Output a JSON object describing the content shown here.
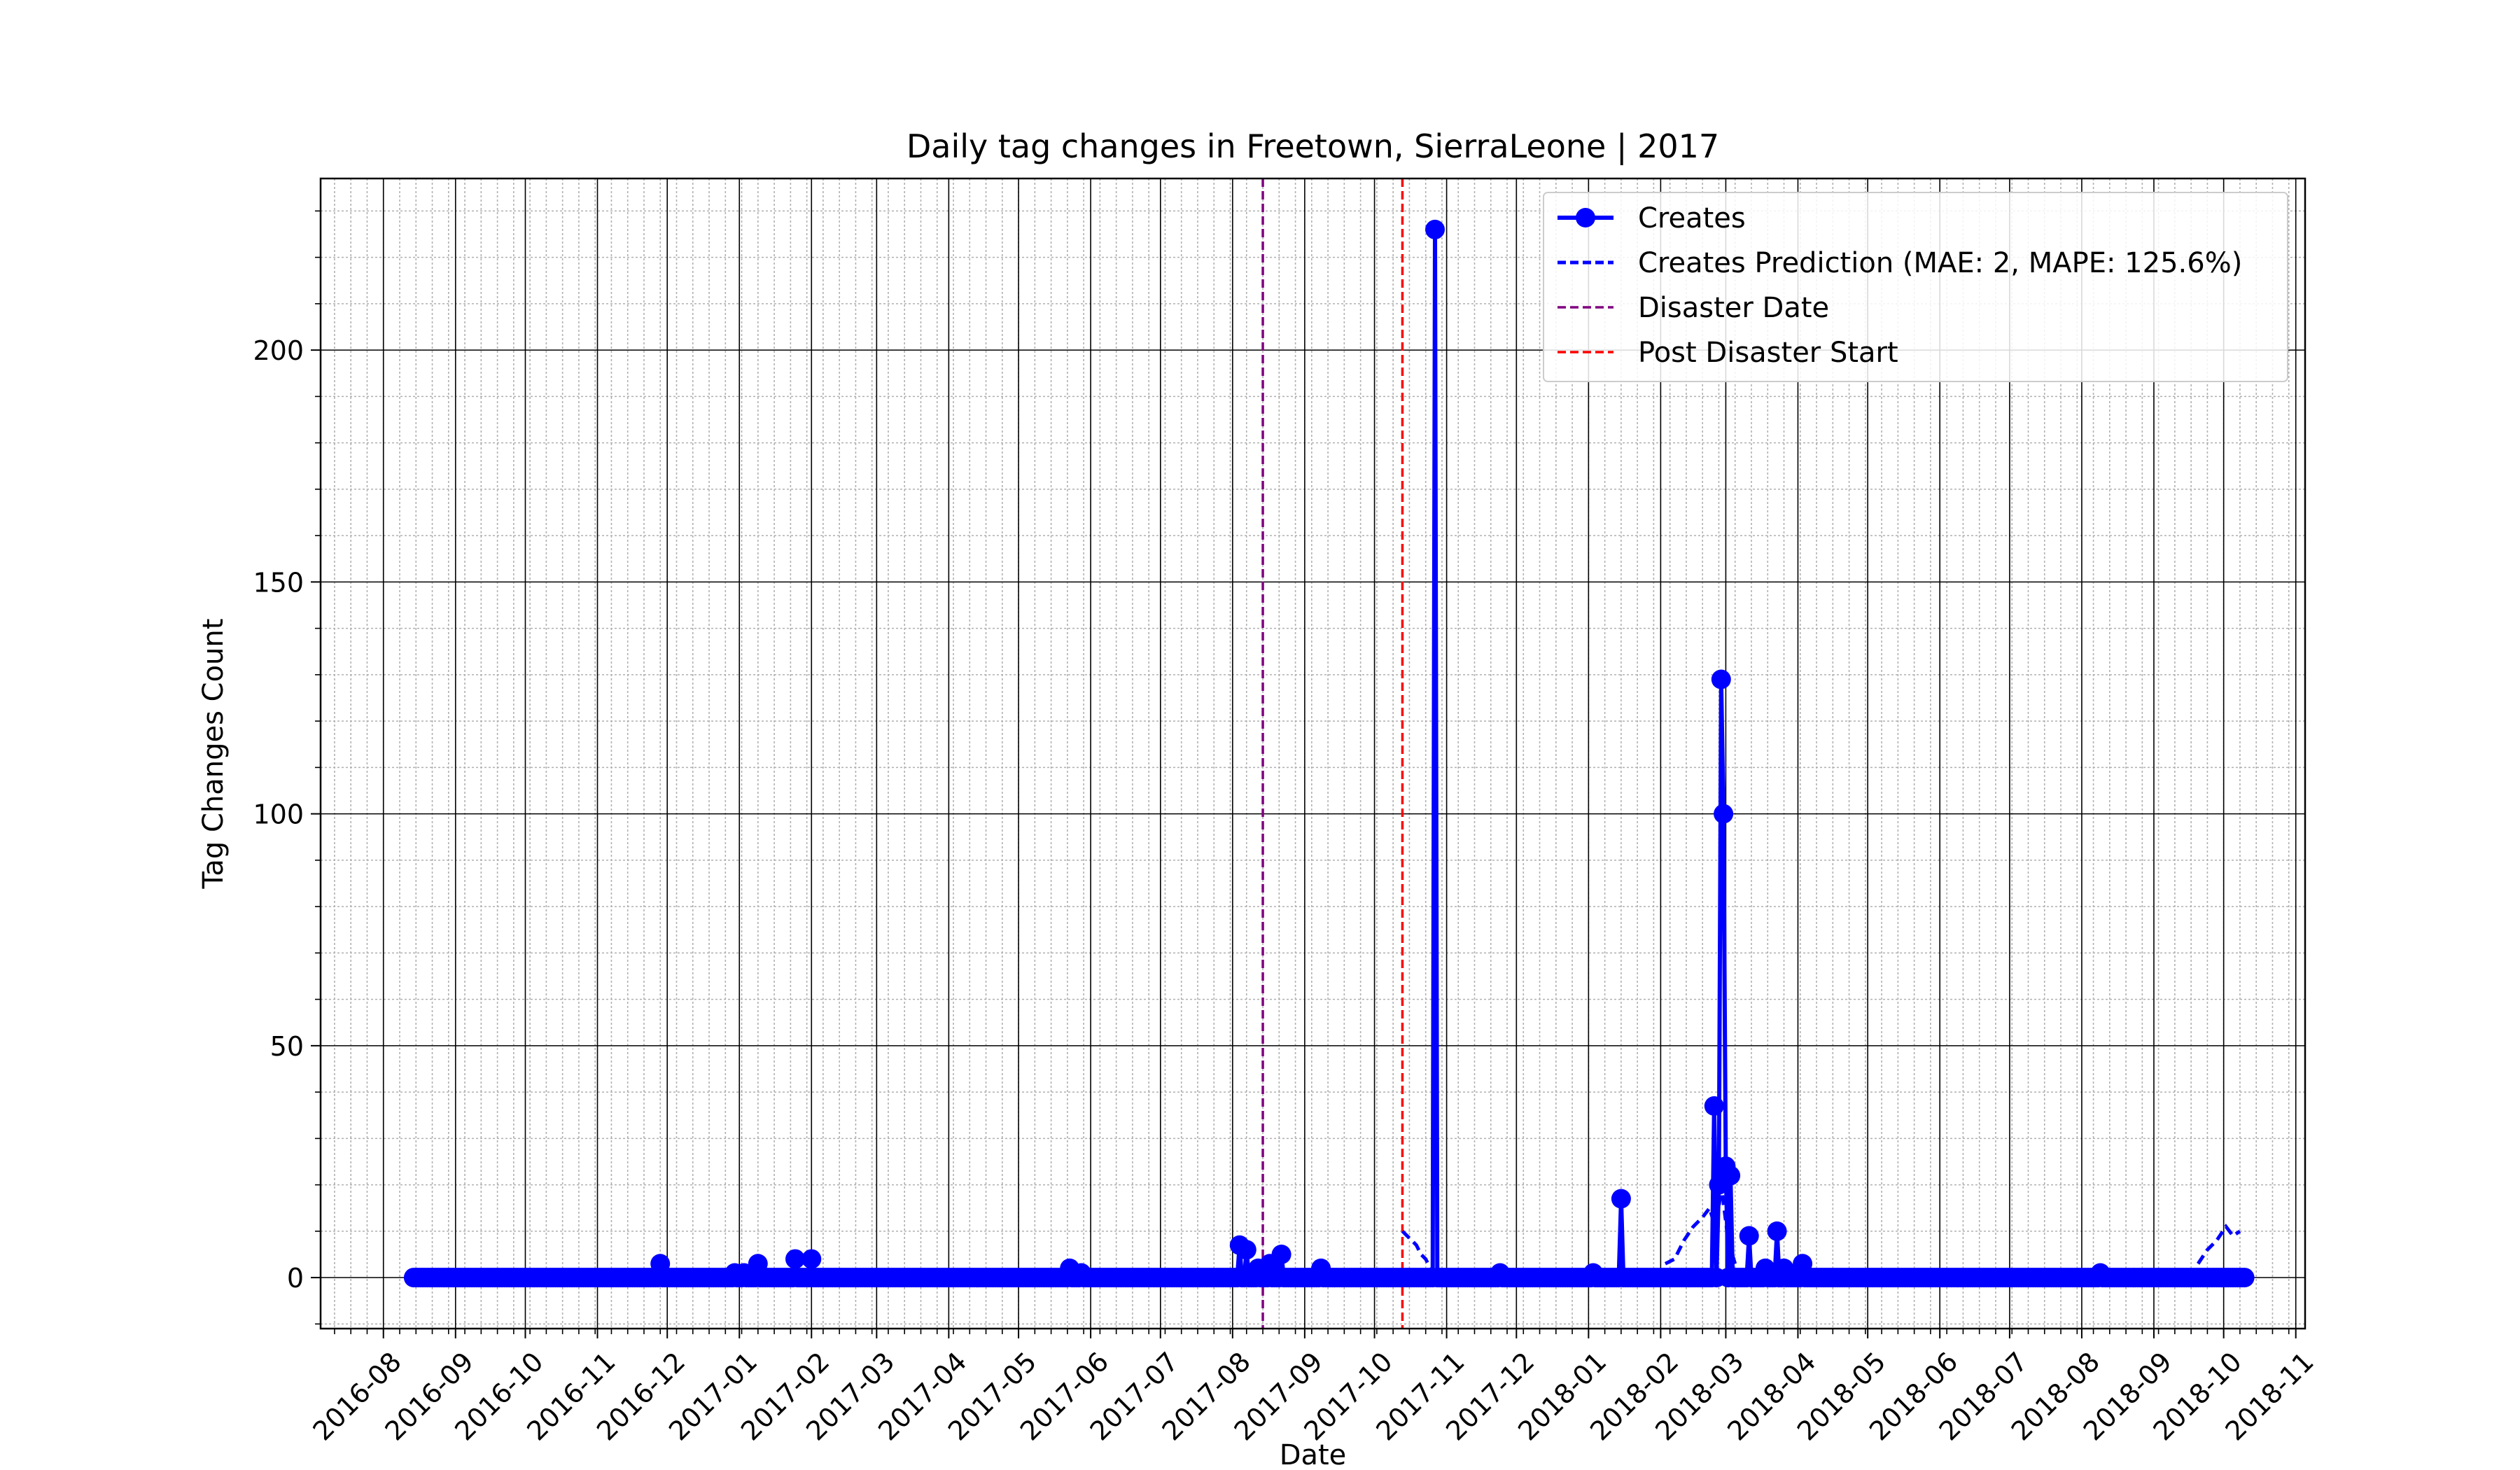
{
  "chart_data": {
    "type": "line",
    "title": "Daily tag changes in Freetown, SierraLeone | 2017",
    "xlabel": "Date",
    "ylabel": "Tag Changes Count",
    "xlim": [
      "2016-07-05",
      "2018-11-05"
    ],
    "ylim": [
      -11,
      237
    ],
    "x_ticks": [
      "2016-08",
      "2016-09",
      "2016-10",
      "2016-11",
      "2016-12",
      "2017-01",
      "2017-02",
      "2017-03",
      "2017-04",
      "2017-05",
      "2017-06",
      "2017-07",
      "2017-08",
      "2017-09",
      "2017-10",
      "2017-11",
      "2017-12",
      "2018-01",
      "2018-02",
      "2018-03",
      "2018-04",
      "2018-05",
      "2018-06",
      "2018-07",
      "2018-08",
      "2018-09",
      "2018-10",
      "2018-11"
    ],
    "y_ticks": [
      0,
      50,
      100,
      150,
      200
    ],
    "grid": true,
    "legend_position": "upper right",
    "legend": [
      {
        "label": "Creates",
        "style": "solid-marker",
        "color": "#0000ff"
      },
      {
        "label": "Creates Prediction (MAE: 2, MAPE: 125.6%)",
        "style": "dashed",
        "color": "#0000ff"
      },
      {
        "label": "Disaster Date",
        "style": "dashed",
        "color": "#800080"
      },
      {
        "label": "Post Disaster Start",
        "style": "dashed",
        "color": "#ff0000"
      }
    ],
    "series": [
      {
        "name": "Creates",
        "color": "#0000ff",
        "style": "solid-marker",
        "date_range": [
          "2016-08-14",
          "2018-10-10"
        ],
        "baseline": 0,
        "points": [
          {
            "x": "2016-11-28",
            "y": 3
          },
          {
            "x": "2016-12-30",
            "y": 1
          },
          {
            "x": "2017-01-03",
            "y": 1
          },
          {
            "x": "2017-01-09",
            "y": 3
          },
          {
            "x": "2017-01-25",
            "y": 4
          },
          {
            "x": "2017-02-01",
            "y": 4
          },
          {
            "x": "2017-05-23",
            "y": 2
          },
          {
            "x": "2017-05-28",
            "y": 1
          },
          {
            "x": "2017-08-04",
            "y": 7
          },
          {
            "x": "2017-08-07",
            "y": 6
          },
          {
            "x": "2017-08-12",
            "y": 2
          },
          {
            "x": "2017-08-17",
            "y": 3
          },
          {
            "x": "2017-08-22",
            "y": 5
          },
          {
            "x": "2017-09-08",
            "y": 2
          },
          {
            "x": "2017-10-27",
            "y": 226
          },
          {
            "x": "2017-11-24",
            "y": 1
          },
          {
            "x": "2018-01-03",
            "y": 1
          },
          {
            "x": "2018-01-15",
            "y": 17
          },
          {
            "x": "2018-02-24",
            "y": 37
          },
          {
            "x": "2018-02-26",
            "y": 20
          },
          {
            "x": "2018-02-27",
            "y": 129
          },
          {
            "x": "2018-02-28",
            "y": 100
          },
          {
            "x": "2018-03-01",
            "y": 24
          },
          {
            "x": "2018-03-03",
            "y": 22
          },
          {
            "x": "2018-03-11",
            "y": 9
          },
          {
            "x": "2018-03-18",
            "y": 2
          },
          {
            "x": "2018-03-23",
            "y": 10
          },
          {
            "x": "2018-03-26",
            "y": 2
          },
          {
            "x": "2018-04-03",
            "y": 3
          },
          {
            "x": "2018-08-09",
            "y": 1
          }
        ]
      },
      {
        "name": "Creates Prediction (MAE: 2, MAPE: 125.6%)",
        "color": "#0000ff",
        "style": "dashed",
        "segments": [
          [
            {
              "x": "2017-10-13",
              "y": 10
            },
            {
              "x": "2017-10-15",
              "y": 9
            },
            {
              "x": "2017-10-17",
              "y": 8
            },
            {
              "x": "2017-10-19",
              "y": 7
            },
            {
              "x": "2017-10-21",
              "y": 5
            },
            {
              "x": "2017-10-23",
              "y": 4
            },
            {
              "x": "2017-10-25",
              "y": 2
            }
          ],
          [
            {
              "x": "2018-02-03",
              "y": 3
            },
            {
              "x": "2018-02-07",
              "y": 4
            },
            {
              "x": "2018-02-11",
              "y": 8
            },
            {
              "x": "2018-02-15",
              "y": 11
            },
            {
              "x": "2018-02-19",
              "y": 13
            },
            {
              "x": "2018-02-22",
              "y": 15
            },
            {
              "x": "2018-02-25",
              "y": 10
            },
            {
              "x": "2018-02-27",
              "y": 20
            },
            {
              "x": "2018-03-02",
              "y": 8
            },
            {
              "x": "2018-03-05",
              "y": 3
            }
          ],
          [
            {
              "x": "2018-09-20",
              "y": 3
            },
            {
              "x": "2018-09-24",
              "y": 6
            },
            {
              "x": "2018-09-28",
              "y": 8
            },
            {
              "x": "2018-10-02",
              "y": 11
            },
            {
              "x": "2018-10-05",
              "y": 9
            },
            {
              "x": "2018-10-08",
              "y": 10
            }
          ]
        ]
      }
    ],
    "vertical_lines": [
      {
        "name": "Disaster Date",
        "x": "2017-08-14",
        "color": "#800080",
        "style": "dashed"
      },
      {
        "name": "Post Disaster Start",
        "x": "2017-10-13",
        "color": "#ff0000",
        "style": "dashed"
      }
    ]
  }
}
